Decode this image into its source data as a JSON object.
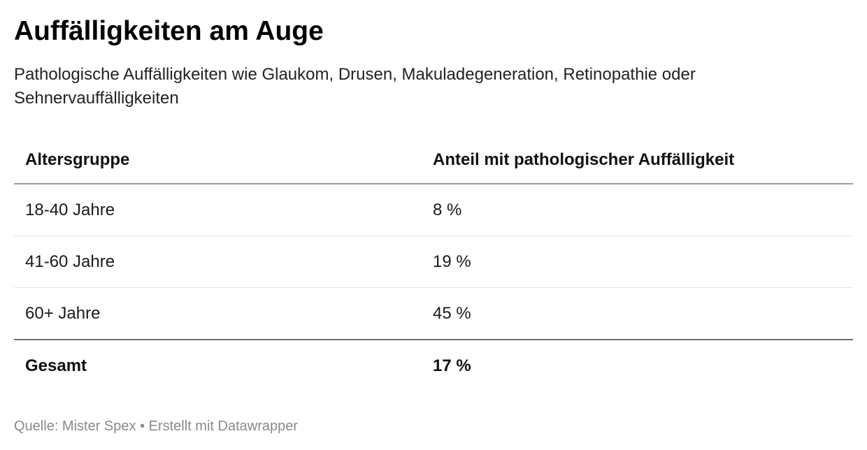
{
  "header": {
    "title": "Auffälligkeiten am Auge",
    "subtitle": "Pathologische Auffälligkeiten wie Glaukom, Drusen, Makuladegeneration, Retinopathie oder Sehnervauffälligkeiten"
  },
  "chart_data": {
    "type": "table",
    "title": "Auffälligkeiten am Auge",
    "subtitle": "Pathologische Auffälligkeiten wie Glaukom, Drusen, Makuladegeneration, Retinopathie oder Sehnervauffälligkeiten",
    "columns": [
      "Altersgruppe",
      "Anteil mit pathologischer Auffälligkeit"
    ],
    "rows": [
      [
        "18-40 Jahre",
        "8 %"
      ],
      [
        "41-60 Jahre",
        "19 %"
      ],
      [
        "60+ Jahre",
        "45 %"
      ]
    ],
    "total": [
      "Gesamt",
      "17 %"
    ],
    "values_percent": [
      8,
      19,
      45
    ],
    "total_percent": 17
  },
  "footer": {
    "text": "Quelle: Mister Spex • Erstellt mit Datawrapper"
  }
}
